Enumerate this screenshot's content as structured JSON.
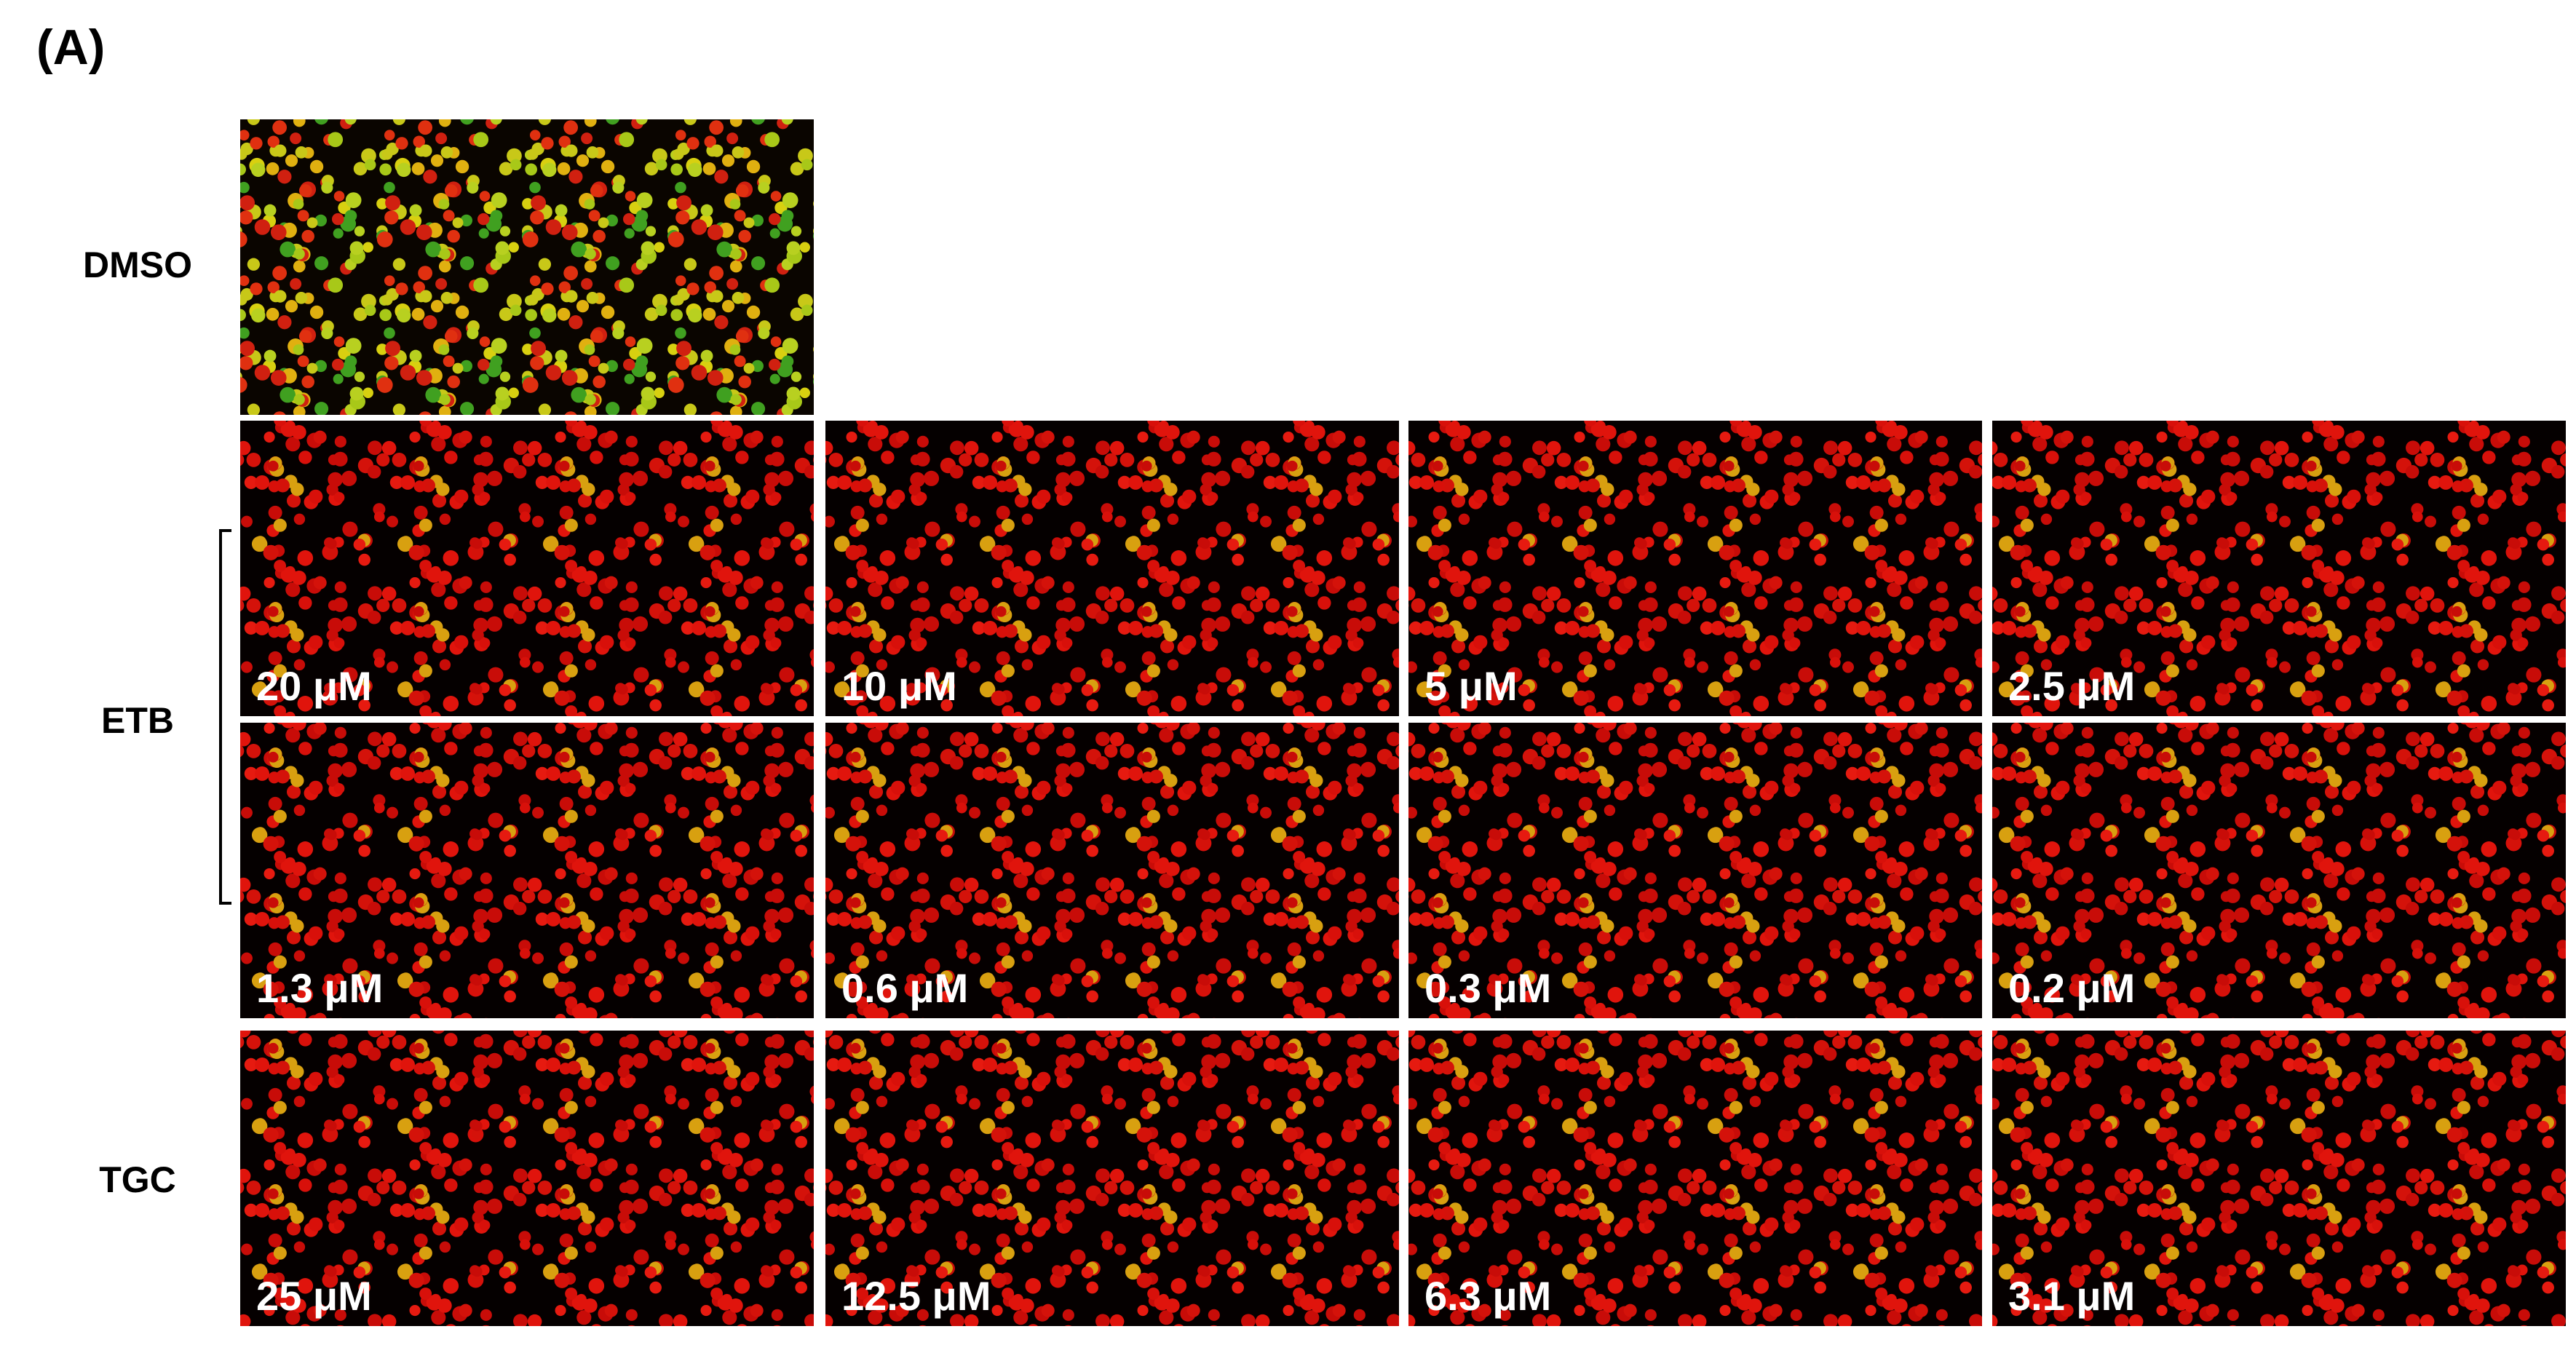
{
  "figure": {
    "panel_label": "(A)",
    "groups": [
      {
        "label": "DMSO"
      },
      {
        "label": "ETB",
        "images": [
          "20 μM",
          "10 μM",
          "5 μM",
          "2.5 μM",
          "1.3 μM",
          "0.6 μM",
          "0.3 μM",
          "0.2 μM"
        ]
      },
      {
        "label": "TGC",
        "images": [
          "25 μM",
          "12.5 μM",
          "6.3 μM",
          "3.1 μM"
        ]
      }
    ]
  }
}
